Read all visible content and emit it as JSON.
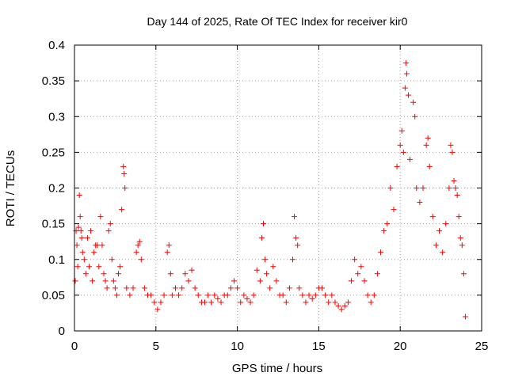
{
  "chart_data": {
    "type": "scatter",
    "title": "Day 144 of 2025, Rate Of TEC Index for receiver kir0",
    "xlabel": "GPS time / hours",
    "ylabel": "ROTI / TECUs",
    "xlim": [
      0,
      25
    ],
    "ylim": [
      0,
      0.4
    ],
    "xticks": [
      "0",
      "5",
      "10",
      "15",
      "20",
      "25"
    ],
    "yticks": [
      "0",
      "0.05",
      "0.1",
      "0.15",
      "0.2",
      "0.25",
      "0.3",
      "0.35",
      "0.4"
    ],
    "grid": true,
    "marker": "+",
    "color": "#ff0000",
    "series": [
      {
        "points": [
          [
            0.05,
            0.07
          ],
          [
            0.1,
            0.14
          ],
          [
            0.15,
            0.12
          ],
          [
            0.2,
            0.09
          ],
          [
            0.25,
            0.145
          ],
          [
            0.3,
            0.19
          ],
          [
            0.35,
            0.16
          ],
          [
            0.4,
            0.14
          ],
          [
            0.45,
            0.13
          ],
          [
            0.5,
            0.11
          ],
          [
            0.6,
            0.1
          ],
          [
            0.7,
            0.08
          ],
          [
            0.8,
            0.13
          ],
          [
            0.9,
            0.09
          ],
          [
            1.0,
            0.14
          ],
          [
            1.1,
            0.07
          ],
          [
            1.2,
            0.11
          ],
          [
            1.3,
            0.12
          ],
          [
            1.4,
            0.12
          ],
          [
            1.5,
            0.09
          ],
          [
            1.6,
            0.16
          ],
          [
            1.7,
            0.12
          ],
          [
            1.8,
            0.08
          ],
          [
            1.9,
            0.07
          ],
          [
            2.0,
            0.06
          ],
          [
            2.1,
            0.14
          ],
          [
            2.2,
            0.15
          ],
          [
            2.3,
            0.1
          ],
          [
            2.4,
            0.07
          ],
          [
            2.5,
            0.06
          ],
          [
            2.6,
            0.05
          ],
          [
            2.7,
            0.08
          ],
          [
            2.8,
            0.09
          ],
          [
            2.9,
            0.17
          ],
          [
            3.0,
            0.23
          ],
          [
            3.05,
            0.22
          ],
          [
            3.1,
            0.2
          ],
          [
            3.2,
            0.06
          ],
          [
            3.4,
            0.05
          ],
          [
            3.6,
            0.06
          ],
          [
            3.8,
            0.11
          ],
          [
            3.9,
            0.12
          ],
          [
            4.0,
            0.125
          ],
          [
            4.1,
            0.1
          ],
          [
            4.3,
            0.06
          ],
          [
            4.5,
            0.05
          ],
          [
            4.7,
            0.05
          ],
          [
            4.9,
            0.04
          ],
          [
            5.1,
            0.03
          ],
          [
            5.3,
            0.04
          ],
          [
            5.5,
            0.05
          ],
          [
            5.7,
            0.11
          ],
          [
            5.8,
            0.12
          ],
          [
            5.9,
            0.08
          ],
          [
            6.0,
            0.05
          ],
          [
            6.2,
            0.06
          ],
          [
            6.4,
            0.05
          ],
          [
            6.6,
            0.06
          ],
          [
            6.8,
            0.08
          ],
          [
            7.0,
            0.07
          ],
          [
            7.2,
            0.085
          ],
          [
            7.4,
            0.06
          ],
          [
            7.6,
            0.05
          ],
          [
            7.8,
            0.04
          ],
          [
            8.0,
            0.04
          ],
          [
            8.2,
            0.05
          ],
          [
            8.4,
            0.04
          ],
          [
            8.6,
            0.05
          ],
          [
            8.8,
            0.045
          ],
          [
            9.0,
            0.04
          ],
          [
            9.2,
            0.05
          ],
          [
            9.4,
            0.05
          ],
          [
            9.6,
            0.06
          ],
          [
            9.8,
            0.07
          ],
          [
            10.0,
            0.06
          ],
          [
            10.2,
            0.04
          ],
          [
            10.4,
            0.05
          ],
          [
            10.6,
            0.045
          ],
          [
            10.8,
            0.04
          ],
          [
            11.0,
            0.05
          ],
          [
            11.2,
            0.085
          ],
          [
            11.4,
            0.07
          ],
          [
            11.5,
            0.13
          ],
          [
            11.6,
            0.15
          ],
          [
            11.7,
            0.1
          ],
          [
            11.8,
            0.08
          ],
          [
            12.0,
            0.06
          ],
          [
            12.2,
            0.09
          ],
          [
            12.4,
            0.07
          ],
          [
            12.6,
            0.05
          ],
          [
            12.8,
            0.05
          ],
          [
            13.0,
            0.04
          ],
          [
            13.2,
            0.06
          ],
          [
            13.4,
            0.1
          ],
          [
            13.5,
            0.16
          ],
          [
            13.6,
            0.13
          ],
          [
            13.7,
            0.12
          ],
          [
            13.8,
            0.06
          ],
          [
            14.0,
            0.05
          ],
          [
            14.2,
            0.04
          ],
          [
            14.4,
            0.05
          ],
          [
            14.6,
            0.045
          ],
          [
            14.8,
            0.05
          ],
          [
            15.0,
            0.06
          ],
          [
            15.2,
            0.06
          ],
          [
            15.4,
            0.05
          ],
          [
            15.6,
            0.04
          ],
          [
            15.8,
            0.05
          ],
          [
            16.0,
            0.04
          ],
          [
            16.2,
            0.035
          ],
          [
            16.4,
            0.03
          ],
          [
            16.6,
            0.035
          ],
          [
            16.8,
            0.04
          ],
          [
            17.0,
            0.07
          ],
          [
            17.2,
            0.1
          ],
          [
            17.4,
            0.08
          ],
          [
            17.6,
            0.09
          ],
          [
            17.8,
            0.07
          ],
          [
            18.0,
            0.05
          ],
          [
            18.2,
            0.04
          ],
          [
            18.4,
            0.05
          ],
          [
            18.6,
            0.08
          ],
          [
            18.8,
            0.11
          ],
          [
            19.0,
            0.14
          ],
          [
            19.2,
            0.15
          ],
          [
            19.4,
            0.2
          ],
          [
            19.6,
            0.17
          ],
          [
            19.8,
            0.23
          ],
          [
            20.0,
            0.26
          ],
          [
            20.1,
            0.28
          ],
          [
            20.2,
            0.25
          ],
          [
            20.3,
            0.34
          ],
          [
            20.35,
            0.375
          ],
          [
            20.4,
            0.36
          ],
          [
            20.5,
            0.33
          ],
          [
            20.6,
            0.24
          ],
          [
            20.8,
            0.32
          ],
          [
            20.9,
            0.3
          ],
          [
            21.0,
            0.2
          ],
          [
            21.2,
            0.18
          ],
          [
            21.4,
            0.2
          ],
          [
            21.6,
            0.26
          ],
          [
            21.7,
            0.27
          ],
          [
            21.8,
            0.23
          ],
          [
            22.0,
            0.16
          ],
          [
            22.2,
            0.12
          ],
          [
            22.4,
            0.14
          ],
          [
            22.6,
            0.11
          ],
          [
            22.8,
            0.15
          ],
          [
            23.0,
            0.2
          ],
          [
            23.1,
            0.26
          ],
          [
            23.2,
            0.25
          ],
          [
            23.3,
            0.21
          ],
          [
            23.4,
            0.2
          ],
          [
            23.5,
            0.19
          ],
          [
            23.6,
            0.16
          ],
          [
            23.7,
            0.13
          ],
          [
            23.8,
            0.12
          ],
          [
            23.9,
            0.08
          ],
          [
            24.0,
            0.02
          ]
        ]
      }
    ]
  }
}
